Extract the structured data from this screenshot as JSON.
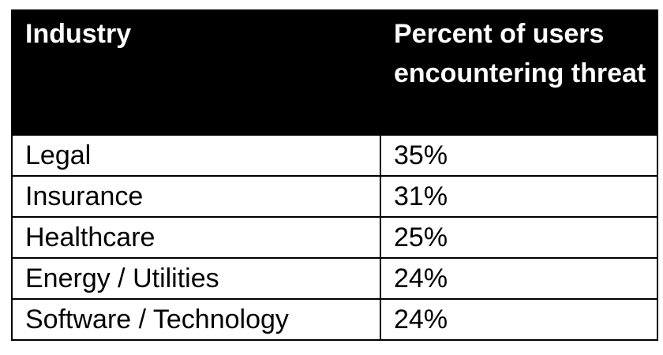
{
  "table": {
    "headers": [
      "Industry",
      "Percent of users encountering threat"
    ],
    "rows": [
      [
        "Legal",
        "35%"
      ],
      [
        "Insurance",
        "31%"
      ],
      [
        "Healthcare",
        "25%"
      ],
      [
        "Energy / Utilities",
        "24%"
      ],
      [
        "Software / Technology",
        "24%"
      ]
    ]
  },
  "colors": {
    "header_background": "#000000",
    "header_text": "#ffffff",
    "body_text": "#000000",
    "border": "#000000"
  }
}
